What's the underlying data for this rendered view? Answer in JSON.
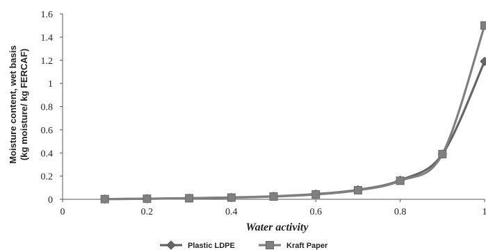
{
  "chart_data": {
    "type": "line",
    "title": "",
    "xlabel": "Water activity",
    "ylabel": [
      "Moisture content, wet basis",
      "(kg moisture/ kg FERCAF)"
    ],
    "xlim": [
      0,
      1
    ],
    "ylim": [
      0,
      1.6
    ],
    "xticks": [
      0,
      0.2,
      0.4,
      0.6,
      0.8,
      1
    ],
    "xtick_labels": [
      "0",
      "0.2",
      "0.4",
      "0.6",
      "0.8",
      "1"
    ],
    "yticks": [
      0,
      0.2,
      0.4,
      0.6,
      0.8,
      1,
      1.2,
      1.4,
      1.6
    ],
    "ytick_labels": [
      "0",
      "0.2",
      "0.4",
      "0.6",
      "0.8",
      "1",
      "1.2",
      "1.4",
      "1.6"
    ],
    "grid": false,
    "legend_position": "bottom",
    "series": [
      {
        "name": "Plastic LDPE",
        "marker": "diamond",
        "color": "#666666",
        "x": [
          0.1,
          0.2,
          0.3,
          0.4,
          0.5,
          0.6,
          0.7,
          0.8,
          0.9,
          1.0
        ],
        "y": [
          0.002,
          0.005,
          0.01,
          0.016,
          0.026,
          0.045,
          0.082,
          0.165,
          0.39,
          1.19
        ]
      },
      {
        "name": "Kraft Paper",
        "marker": "square",
        "color": "#808080",
        "x": [
          0.1,
          0.2,
          0.3,
          0.4,
          0.5,
          0.6,
          0.7,
          0.8,
          0.9,
          1.0
        ],
        "y": [
          0.002,
          0.005,
          0.009,
          0.015,
          0.024,
          0.042,
          0.078,
          0.16,
          0.39,
          1.5
        ]
      }
    ]
  }
}
